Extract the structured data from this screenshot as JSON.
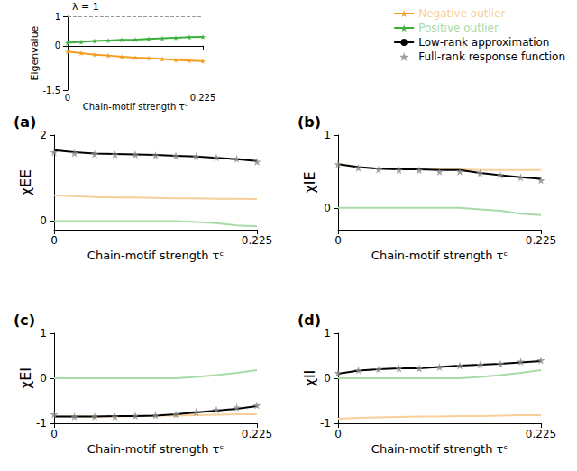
{
  "chart_data": [
    {
      "type": "line",
      "xlabel": "Chain-motif strength τᶜ",
      "ylabel": "Eigenvalue",
      "x": [
        0,
        0.0225,
        0.045,
        0.0675,
        0.09,
        0.1125,
        0.135,
        0.1575,
        0.18,
        0.2025,
        0.225
      ],
      "xlim": [
        0,
        0.225
      ],
      "xticks": [
        0,
        0.225
      ],
      "ylim": [
        -1.5,
        1
      ],
      "yticks": [
        -1.5,
        0,
        1
      ],
      "annotations": [
        {
          "text": "λ = 1",
          "y": 1,
          "line_style": "dashed"
        }
      ],
      "series": [
        {
          "name": "Positive outlier",
          "color": "#3cae3c",
          "marker": "star",
          "line_style": "solid",
          "values": [
            0.1,
            0.13,
            0.16,
            0.18,
            0.2,
            0.21,
            0.23,
            0.25,
            0.27,
            0.29,
            0.3
          ]
        },
        {
          "name": "Negative outlier",
          "color": "#f39c1f",
          "marker": "star",
          "line_style": "solid",
          "values": [
            -0.2,
            -0.25,
            -0.3,
            -0.33,
            -0.37,
            -0.4,
            -0.42,
            -0.45,
            -0.48,
            -0.5,
            -0.52
          ]
        }
      ]
    },
    {
      "type": "line",
      "title": "(a)",
      "legend": "upper right",
      "xlabel": "Chain-motif strength τᶜ",
      "ylabel": "χEE",
      "x": [
        0,
        0.0225,
        0.045,
        0.0675,
        0.09,
        0.1125,
        0.135,
        0.1575,
        0.18,
        0.2025,
        0.225
      ],
      "xlim": [
        0,
        0.225
      ],
      "xticks": [
        0,
        0.225
      ],
      "ylim": [
        -0.2,
        2
      ],
      "yticks": [
        0,
        2
      ],
      "series": [
        {
          "name": "Negative outlier",
          "color": "#f7cf98",
          "line_style": "solid",
          "values": [
            0.6,
            0.58,
            0.56,
            0.55,
            0.55,
            0.54,
            0.53,
            0.53,
            0.52,
            0.52,
            0.51
          ]
        },
        {
          "name": "Positive outlier",
          "color": "#a9dba9",
          "line_style": "solid",
          "values": [
            0,
            0,
            0,
            0,
            0,
            0,
            0,
            -0.02,
            -0.05,
            -0.1,
            -0.12
          ]
        },
        {
          "name": "Low-rank approximation",
          "color": "#000000",
          "line_style": "solid",
          "values": [
            1.65,
            1.6,
            1.57,
            1.56,
            1.55,
            1.54,
            1.52,
            1.5,
            1.47,
            1.44,
            1.4
          ]
        },
        {
          "name": "Full-rank response function",
          "type": "scatter",
          "color": "#888888",
          "marker": "star",
          "values": [
            1.6,
            1.58,
            1.56,
            1.55,
            1.55,
            1.53,
            1.52,
            1.5,
            1.48,
            1.45,
            1.38
          ]
        }
      ]
    },
    {
      "type": "line",
      "title": "(b)",
      "xlabel": "Chain-motif strength τᶜ",
      "ylabel": "χIE",
      "x": [
        0,
        0.0225,
        0.045,
        0.0675,
        0.09,
        0.1125,
        0.135,
        0.1575,
        0.18,
        0.2025,
        0.225
      ],
      "xlim": [
        0,
        0.225
      ],
      "xticks": [
        0,
        0.225
      ],
      "ylim": [
        -0.3,
        1
      ],
      "yticks": [
        0,
        1
      ],
      "series": [
        {
          "name": "Negative outlier",
          "color": "#f7cf98",
          "line_style": "solid",
          "values": [
            0.6,
            0.56,
            0.54,
            0.53,
            0.53,
            0.53,
            0.53,
            0.52,
            0.52,
            0.52,
            0.52
          ]
        },
        {
          "name": "Positive outlier",
          "color": "#a9dba9",
          "line_style": "solid",
          "values": [
            0,
            0,
            0,
            0,
            0,
            0,
            0,
            -0.02,
            -0.04,
            -0.08,
            -0.1
          ]
        },
        {
          "name": "Low-rank approximation",
          "color": "#000000",
          "line_style": "solid",
          "values": [
            0.6,
            0.56,
            0.54,
            0.53,
            0.53,
            0.52,
            0.52,
            0.48,
            0.45,
            0.42,
            0.4
          ]
        },
        {
          "name": "Full-rank response function",
          "type": "scatter",
          "color": "#888888",
          "marker": "star",
          "values": [
            0.6,
            0.55,
            0.53,
            0.52,
            0.52,
            0.5,
            0.5,
            0.48,
            0.45,
            0.42,
            0.38
          ]
        }
      ]
    },
    {
      "type": "line",
      "title": "(c)",
      "xlabel": "Chain-motif strength τᶜ",
      "ylabel": "χEI",
      "x": [
        0,
        0.0225,
        0.045,
        0.0675,
        0.09,
        0.1125,
        0.135,
        0.1575,
        0.18,
        0.2025,
        0.225
      ],
      "xlim": [
        0,
        0.225
      ],
      "xticks": [
        0,
        0.225
      ],
      "ylim": [
        -1,
        1
      ],
      "yticks": [
        -1,
        0,
        1
      ],
      "series": [
        {
          "name": "Negative outlier",
          "color": "#f7cf98",
          "line_style": "solid",
          "values": [
            -0.85,
            -0.85,
            -0.85,
            -0.85,
            -0.84,
            -0.83,
            -0.83,
            -0.82,
            -0.81,
            -0.8,
            -0.8
          ]
        },
        {
          "name": "Positive outlier",
          "color": "#a9dba9",
          "line_style": "solid",
          "values": [
            0,
            0,
            0,
            0,
            0,
            0,
            0,
            0.03,
            0.07,
            0.12,
            0.18
          ]
        },
        {
          "name": "Low-rank approximation",
          "color": "#000000",
          "line_style": "solid",
          "values": [
            -0.85,
            -0.85,
            -0.85,
            -0.84,
            -0.84,
            -0.83,
            -0.8,
            -0.76,
            -0.72,
            -0.68,
            -0.62
          ]
        },
        {
          "name": "Full-rank response function",
          "type": "scatter",
          "color": "#888888",
          "marker": "star",
          "values": [
            -0.8,
            -0.85,
            -0.85,
            -0.85,
            -0.83,
            -0.82,
            -0.8,
            -0.75,
            -0.7,
            -0.65,
            -0.6
          ]
        }
      ]
    },
    {
      "type": "line",
      "title": "(d)",
      "xlabel": "Chain-motif strength τᶜ",
      "ylabel": "χII",
      "x": [
        0,
        0.0225,
        0.045,
        0.0675,
        0.09,
        0.1125,
        0.135,
        0.1575,
        0.18,
        0.2025,
        0.225
      ],
      "xlim": [
        0,
        0.225
      ],
      "xticks": [
        0,
        0.225
      ],
      "ylim": [
        -1,
        1
      ],
      "yticks": [
        -1,
        0,
        1
      ],
      "series": [
        {
          "name": "Negative outlier",
          "color": "#f7cf98",
          "line_style": "solid",
          "values": [
            -0.9,
            -0.88,
            -0.87,
            -0.86,
            -0.85,
            -0.85,
            -0.84,
            -0.84,
            -0.83,
            -0.82,
            -0.82
          ]
        },
        {
          "name": "Positive outlier",
          "color": "#a9dba9",
          "line_style": "solid",
          "values": [
            0,
            0,
            0,
            0,
            0,
            0,
            0,
            0.03,
            0.07,
            0.12,
            0.18
          ]
        },
        {
          "name": "Low-rank approximation",
          "color": "#000000",
          "line_style": "solid",
          "values": [
            0.1,
            0.17,
            0.2,
            0.22,
            0.22,
            0.25,
            0.28,
            0.3,
            0.32,
            0.35,
            0.38
          ]
        },
        {
          "name": "Full-rank response function",
          "type": "scatter",
          "color": "#888888",
          "marker": "star",
          "values": [
            0.12,
            0.18,
            0.2,
            0.22,
            0.22,
            0.25,
            0.28,
            0.3,
            0.32,
            0.37,
            0.4
          ]
        }
      ]
    }
  ]
}
